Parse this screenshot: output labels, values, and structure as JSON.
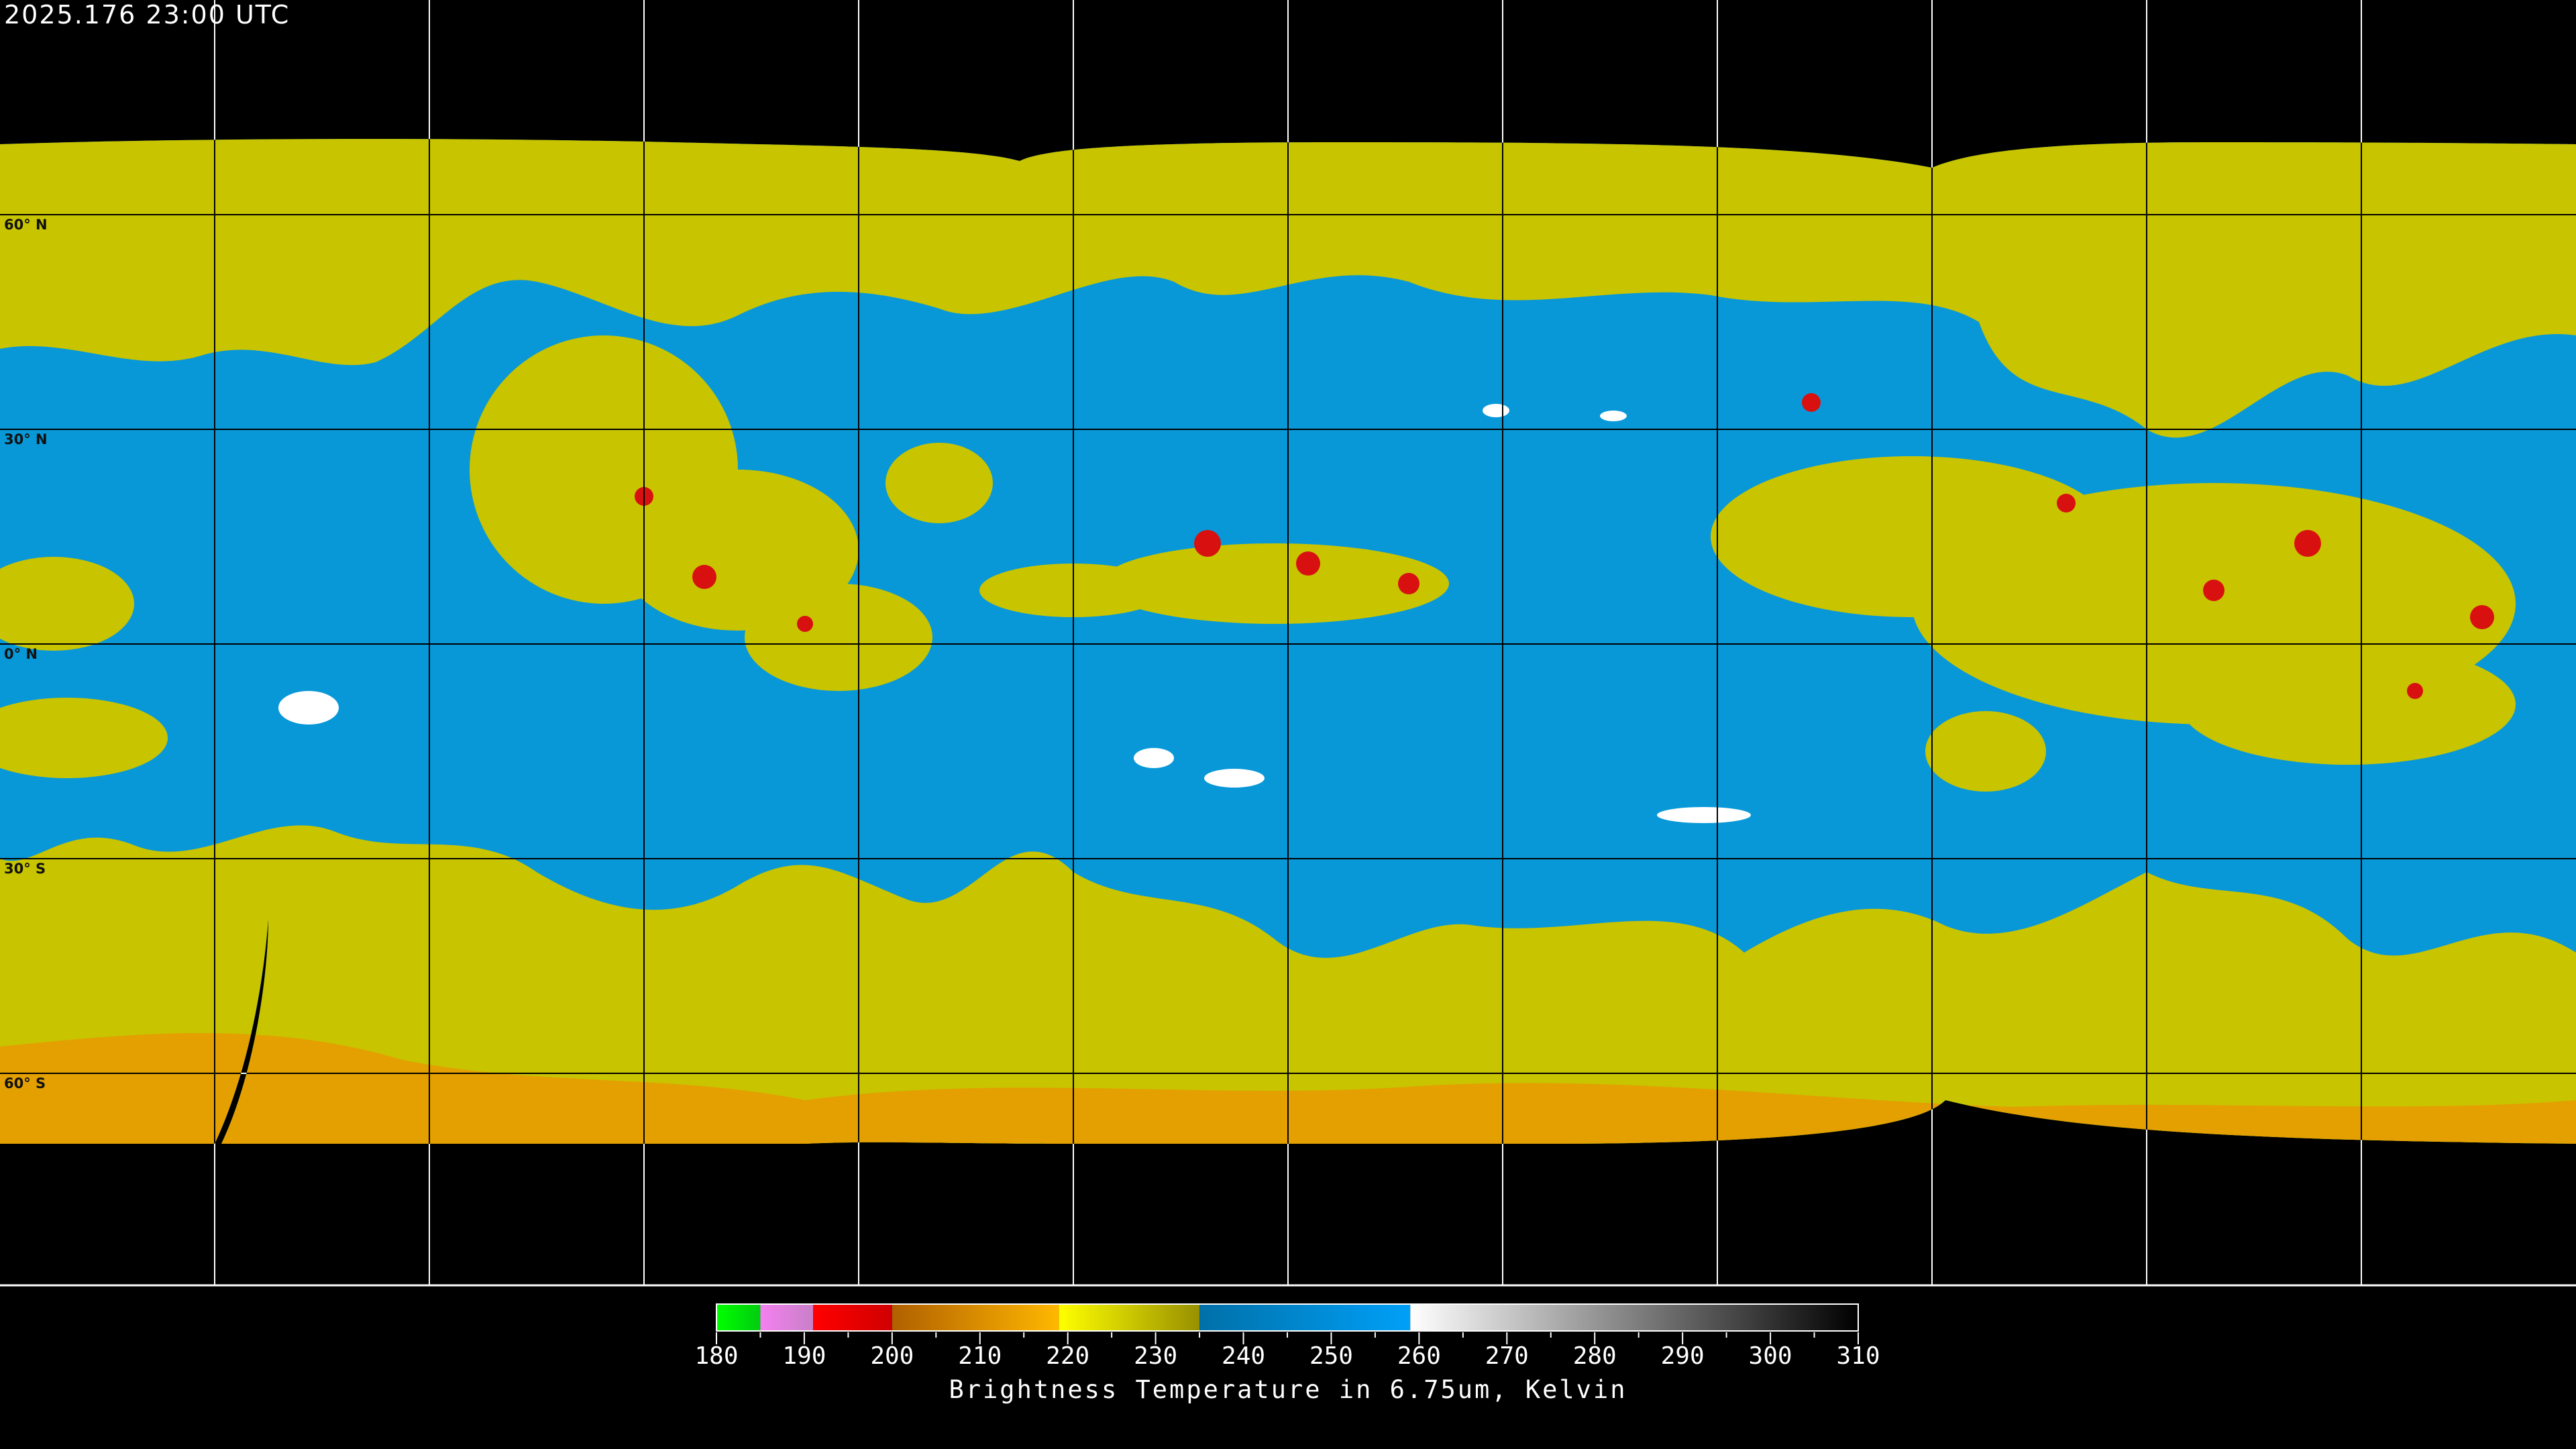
{
  "timestamp": "2025.176 23:00 UTC",
  "map": {
    "projection": "equirectangular",
    "lon_range": [
      -180,
      180
    ],
    "lat_range": [
      -90,
      90
    ],
    "grid_spacing_deg": 30,
    "lat_labels": [
      "60° N",
      "30° N",
      "0° N",
      "30° S",
      "60° S"
    ],
    "colors": {
      "background": "#000000",
      "cold_cloud": "#c8c400",
      "cirrus_orange": "#e89a00",
      "deep_convection": "#d81010",
      "dry_air": "#0898d8",
      "very_dry": "#ffffff",
      "coastline": "#000000",
      "coastline_outside": "#ffffff"
    }
  },
  "colorbar": {
    "title": "Brightness Temperature in 6.75um, Kelvin",
    "min": 180,
    "max": 310,
    "tick_step": 5,
    "labels": [
      "180",
      "190",
      "200",
      "210",
      "220",
      "230",
      "240",
      "250",
      "260",
      "270",
      "280",
      "290",
      "300",
      "310"
    ],
    "segments": [
      {
        "from": 180,
        "to": 185,
        "c0": "#00ff00",
        "c1": "#00cc10"
      },
      {
        "from": 185,
        "to": 191,
        "c0": "#f580f0",
        "c1": "#c880c8"
      },
      {
        "from": 191,
        "to": 200,
        "c0": "#ff0000",
        "c1": "#d00000"
      },
      {
        "from": 200,
        "to": 219,
        "c0": "#b06000",
        "c1": "#ffb800"
      },
      {
        "from": 219,
        "to": 235,
        "c0": "#ffff00",
        "c1": "#989000"
      },
      {
        "from": 235,
        "to": 259,
        "c0": "#0070a8",
        "c1": "#00a0f8"
      },
      {
        "from": 259,
        "to": 310,
        "c0": "#ffffff",
        "c1": "#000000"
      }
    ]
  }
}
